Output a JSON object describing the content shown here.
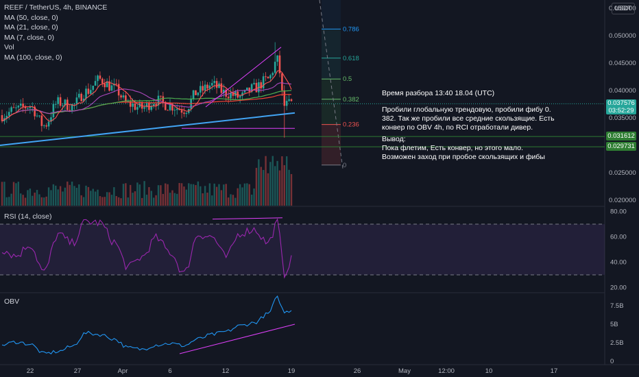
{
  "symbol": "REEF / TetherUS, 4h, BINANCE",
  "indicators": [
    "MA (50, close, 0)",
    "MA (21, close, 0)",
    "MA (7, close, 0)",
    "Vol",
    "MA (100, close, 0)"
  ],
  "currency": "USDT",
  "rsi_label": "RSI (14, close)",
  "obv_label": "OBV",
  "note": {
    "title": "Время разбора 13:40 18.04 (UTC)",
    "body": "Пробили глобальную трендовую, пробили фибу 0.\n382. Так же пробили все средние скользящие. Есть\nконвер по OBV 4h, по RCI отработали дивер.",
    "conclusion": "Вывод:\nПока флетим, Есть конвер, но этого мало.\nВозможен заход при пробое скользящих и фибы"
  },
  "price_tags": {
    "current": {
      "price": "0.037576",
      "timer": "03:52:29",
      "color": "#26a69a"
    },
    "level1": {
      "price": "0.031612",
      "color": "#2e7d32"
    },
    "level2": {
      "price": "0.029731",
      "color": "#2e7d32"
    }
  },
  "colors": {
    "up": "#26a69a",
    "down": "#ef5350",
    "ma50": "#4caf50",
    "ma21": "#ab47bc",
    "ma7": "#ff5252",
    "ma100": "#f44336",
    "trend": "#42a5f5",
    "rsi": "#9c27b0",
    "obv": "#2196f3"
  },
  "chart_data": [
    {
      "type": "candlestick",
      "title": "REEF / TetherUS, 4h, BINANCE",
      "x_tick_labels": [
        "22",
        "27",
        "Apr",
        "6",
        "12",
        "19",
        "26",
        "May",
        "12:00",
        "10",
        "17"
      ],
      "y_tick_labels": [
        "0.055000",
        "0.050000",
        "0.045000",
        "0.040000",
        "0.035000",
        "0.030000",
        "0.025000",
        "0.020000"
      ],
      "ylim": [
        0.019,
        0.056
      ],
      "fibonacci": [
        {
          "level": "0.786",
          "price": 0.0512,
          "color": "#2196f3"
        },
        {
          "level": "0.618",
          "price": 0.0459,
          "color": "#26a69a"
        },
        {
          "level": "0.5",
          "price": 0.0421,
          "color": "#66bb6a"
        },
        {
          "level": "0.382",
          "price": 0.0384,
          "color": "#66bb6a"
        },
        {
          "level": "0.236",
          "price": 0.0338,
          "color": "#ef5350"
        },
        {
          "level": "0",
          "price": 0.0264,
          "color": "#787b86"
        }
      ],
      "horizontal_levels": [
        0.031612,
        0.029731
      ],
      "current_price": 0.037576,
      "ohlc_control_points": [
        [
          0,
          0.0355
        ],
        [
          6,
          0.0365
        ],
        [
          12,
          0.0372
        ],
        [
          18,
          0.0336
        ],
        [
          24,
          0.0378
        ],
        [
          30,
          0.0372
        ],
        [
          36,
          0.0398
        ],
        [
          42,
          0.042
        ],
        [
          48,
          0.0404
        ],
        [
          54,
          0.0375
        ],
        [
          60,
          0.0368
        ],
        [
          66,
          0.0382
        ],
        [
          72,
          0.0372
        ],
        [
          78,
          0.0365
        ],
        [
          84,
          0.0398
        ],
        [
          90,
          0.041
        ],
        [
          96,
          0.0395
        ],
        [
          102,
          0.0388
        ],
        [
          108,
          0.0404
        ],
        [
          114,
          0.042
        ],
        [
          118,
          0.0455
        ],
        [
          121,
          0.0372
        ],
        [
          124,
          0.0376
        ]
      ]
    },
    {
      "type": "line",
      "title": "RSI (14, close)",
      "y_tick_labels": [
        "80.00",
        "60.00",
        "40.00",
        "20.00"
      ],
      "ylim": [
        17,
        83
      ],
      "band": [
        30,
        70
      ],
      "control_points": [
        [
          0,
          50
        ],
        [
          6,
          45
        ],
        [
          12,
          54
        ],
        [
          18,
          32
        ],
        [
          24,
          62
        ],
        [
          30,
          55
        ],
        [
          36,
          72
        ],
        [
          42,
          71
        ],
        [
          48,
          56
        ],
        [
          54,
          36
        ],
        [
          60,
          44
        ],
        [
          66,
          59
        ],
        [
          72,
          48
        ],
        [
          78,
          31
        ],
        [
          84,
          62
        ],
        [
          90,
          60
        ],
        [
          96,
          44
        ],
        [
          102,
          63
        ],
        [
          108,
          66
        ],
        [
          114,
          55
        ],
        [
          118,
          71
        ],
        [
          121,
          31
        ],
        [
          124,
          42
        ]
      ]
    },
    {
      "type": "line",
      "title": "OBV",
      "y_tick_labels": [
        "7.5B",
        "5B",
        "2.5B",
        "0"
      ],
      "ylim": [
        -0.3,
        9.0
      ],
      "control_points": [
        [
          0,
          2.2
        ],
        [
          6,
          2.6
        ],
        [
          12,
          2.3
        ],
        [
          18,
          1.0
        ],
        [
          24,
          1.3
        ],
        [
          30,
          2.0
        ],
        [
          36,
          3.8
        ],
        [
          42,
          3.6
        ],
        [
          48,
          3.0
        ],
        [
          54,
          1.8
        ],
        [
          60,
          1.6
        ],
        [
          66,
          2.2
        ],
        [
          72,
          2.4
        ],
        [
          78,
          2.1
        ],
        [
          84,
          3.0
        ],
        [
          90,
          3.6
        ],
        [
          96,
          4.0
        ],
        [
          102,
          4.8
        ],
        [
          108,
          5.2
        ],
        [
          114,
          6.4
        ],
        [
          118,
          8.6
        ],
        [
          121,
          6.6
        ],
        [
          124,
          6.9
        ]
      ]
    }
  ]
}
